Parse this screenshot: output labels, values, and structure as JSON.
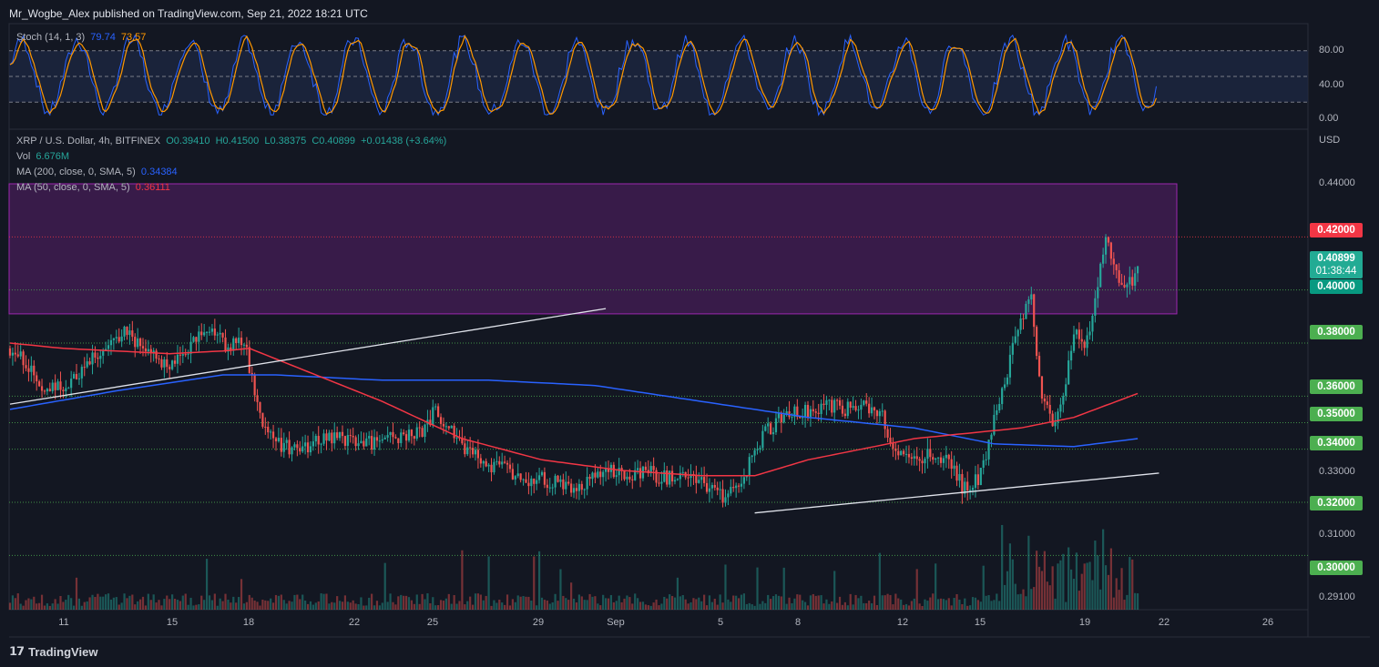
{
  "header": {
    "text": "Mr_Wogbe_Alex published on TradingView.com, Sep 21, 2022 18:21 UTC"
  },
  "stoch": {
    "label": "Stoch (14, 1, 3)",
    "k": "79.74",
    "d": "73.57",
    "k_color": "#2962ff",
    "d_color": "#ff9800",
    "ticks": [
      "80.00",
      "40.00",
      "0.00"
    ]
  },
  "legend": {
    "symbol": "XRP / U.S. Dollar, 4h, BITFINEX",
    "o": "O0.39410",
    "h": "H0.41500",
    "l": "L0.38375",
    "c": "C0.40899",
    "chg": "+0.01438 (+3.64%)",
    "vol_label": "Vol",
    "vol_value": "6.676M",
    "ma200_label": "MA (200, close, 0, SMA, 5)",
    "ma200_value": "0.34384",
    "ma50_label": "MA (50, close, 0, SMA, 5)",
    "ma50_value": "0.36111"
  },
  "axis": {
    "currency": "USD",
    "y_labels": [
      "0.44000",
      "0.33000",
      "0.31000",
      "0.29100"
    ],
    "x_labels": [
      "11",
      "15",
      "18",
      "22",
      "25",
      "29",
      "Sep",
      "5",
      "8",
      "12",
      "15",
      "19",
      "22",
      "26"
    ]
  },
  "badges": [
    {
      "text": "0.42000",
      "color": "#f23645"
    },
    {
      "text": "0.40899",
      "sub": "01:38:44",
      "color": "#22ab94"
    },
    {
      "text": "0.40000",
      "color": "#089981"
    },
    {
      "text": "0.38000",
      "color": "#4caf50"
    },
    {
      "text": "0.36000",
      "color": "#4caf50"
    },
    {
      "text": "0.35000",
      "color": "#4caf50"
    },
    {
      "text": "0.34000",
      "color": "#4caf50"
    },
    {
      "text": "0.32000",
      "color": "#4caf50"
    },
    {
      "text": "0.30000",
      "color": "#4caf50"
    }
  ],
  "footer": {
    "brand": "TradingView"
  },
  "chart_data": {
    "type": "candlestick",
    "symbol": "XRP/USD",
    "timeframe": "4h",
    "ylim": [
      0.286,
      0.452
    ],
    "x_range": [
      "Aug 9",
      "Sep 27"
    ],
    "resistance_zone": [
      0.391,
      0.44
    ],
    "horizontal_levels": [
      0.42,
      0.4,
      0.38,
      0.36,
      0.35,
      0.34,
      0.32,
      0.3
    ],
    "colors": {
      "up": "#26a69a",
      "down": "#ef5350",
      "ma50": "#f23645",
      "ma200": "#2962ff",
      "zone": "#9c27b0"
    },
    "close_path": [
      [
        0,
        0.378
      ],
      [
        6,
        0.372
      ],
      [
        12,
        0.365
      ],
      [
        20,
        0.362
      ],
      [
        28,
        0.371
      ],
      [
        36,
        0.38
      ],
      [
        44,
        0.384
      ],
      [
        52,
        0.376
      ],
      [
        60,
        0.37
      ],
      [
        68,
        0.38
      ],
      [
        76,
        0.384
      ],
      [
        82,
        0.378
      ],
      [
        88,
        0.381
      ],
      [
        94,
        0.352
      ],
      [
        100,
        0.342
      ],
      [
        108,
        0.34
      ],
      [
        116,
        0.343
      ],
      [
        124,
        0.345
      ],
      [
        132,
        0.342
      ],
      [
        140,
        0.343
      ],
      [
        148,
        0.345
      ],
      [
        156,
        0.348
      ],
      [
        160,
        0.356
      ],
      [
        164,
        0.348
      ],
      [
        172,
        0.34
      ],
      [
        180,
        0.333
      ],
      [
        188,
        0.332
      ],
      [
        194,
        0.326
      ],
      [
        200,
        0.329
      ],
      [
        208,
        0.326
      ],
      [
        216,
        0.327
      ],
      [
        224,
        0.333
      ],
      [
        232,
        0.33
      ],
      [
        240,
        0.331
      ],
      [
        248,
        0.329
      ],
      [
        256,
        0.332
      ],
      [
        262,
        0.325
      ],
      [
        268,
        0.322
      ],
      [
        274,
        0.326
      ],
      [
        280,
        0.34
      ],
      [
        284,
        0.346
      ],
      [
        290,
        0.352
      ],
      [
        298,
        0.354
      ],
      [
        306,
        0.357
      ],
      [
        314,
        0.355
      ],
      [
        322,
        0.357
      ],
      [
        328,
        0.354
      ],
      [
        332,
        0.34
      ],
      [
        338,
        0.336
      ],
      [
        346,
        0.338
      ],
      [
        352,
        0.336
      ],
      [
        358,
        0.326
      ],
      [
        364,
        0.328
      ],
      [
        368,
        0.342
      ],
      [
        372,
        0.358
      ],
      [
        376,
        0.374
      ],
      [
        380,
        0.39
      ],
      [
        384,
        0.396
      ],
      [
        388,
        0.36
      ],
      [
        392,
        0.348
      ],
      [
        396,
        0.358
      ],
      [
        400,
        0.386
      ],
      [
        404,
        0.378
      ],
      [
        408,
        0.396
      ],
      [
        412,
        0.418
      ],
      [
        416,
        0.406
      ],
      [
        420,
        0.4
      ],
      [
        424,
        0.409
      ]
    ],
    "ma50_path": [
      [
        0,
        0.38
      ],
      [
        20,
        0.378
      ],
      [
        40,
        0.377
      ],
      [
        60,
        0.376
      ],
      [
        80,
        0.377
      ],
      [
        90,
        0.378
      ],
      [
        110,
        0.37
      ],
      [
        140,
        0.358
      ],
      [
        170,
        0.344
      ],
      [
        200,
        0.336
      ],
      [
        230,
        0.332
      ],
      [
        260,
        0.33
      ],
      [
        280,
        0.33
      ],
      [
        300,
        0.336
      ],
      [
        320,
        0.34
      ],
      [
        340,
        0.344
      ],
      [
        360,
        0.346
      ],
      [
        380,
        0.348
      ],
      [
        400,
        0.352
      ],
      [
        424,
        0.361
      ]
    ],
    "ma200_path": [
      [
        0,
        0.355
      ],
      [
        40,
        0.362
      ],
      [
        80,
        0.368
      ],
      [
        100,
        0.368
      ],
      [
        140,
        0.366
      ],
      [
        180,
        0.366
      ],
      [
        220,
        0.364
      ],
      [
        260,
        0.358
      ],
      [
        300,
        0.352
      ],
      [
        340,
        0.348
      ],
      [
        370,
        0.342
      ],
      [
        400,
        0.341
      ],
      [
        424,
        0.344
      ]
    ],
    "trendlines": [
      {
        "from": [
          0,
          0.357
        ],
        "to": [
          224,
          0.393
        ]
      },
      {
        "from": [
          280,
          0.316
        ],
        "to": [
          432,
          0.331
        ]
      }
    ]
  }
}
